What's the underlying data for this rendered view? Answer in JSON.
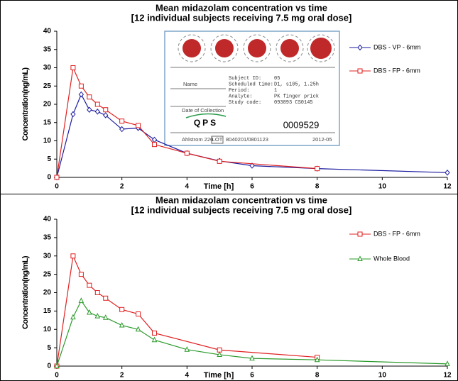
{
  "chart_data": [
    {
      "type": "line",
      "title": "Mean midazolam concentration vs time",
      "subtitle": "[12 individual subjects receiving 7.5 mg oral dose]",
      "xlabel": "Time [h]",
      "ylabel": "Concentration(ng/mL)",
      "xlim": [
        0,
        12
      ],
      "xticks": [
        0,
        2,
        4,
        6,
        8,
        10,
        12
      ],
      "ylim": [
        0,
        40
      ],
      "yticks": [
        0,
        5,
        10,
        15,
        20,
        25,
        30,
        35,
        40
      ],
      "legend": "upper right",
      "series": [
        {
          "name": "DBS - VP - 6mm",
          "color": "#1a1aa0",
          "marker": "diamond",
          "x": [
            0,
            0.5,
            0.75,
            1,
            1.25,
            1.5,
            2,
            2.5,
            3,
            4,
            5,
            6,
            8,
            12
          ],
          "values": [
            0,
            17.3,
            22.7,
            18.5,
            18,
            17,
            13.2,
            13.5,
            10.3,
            6.6,
            4.5,
            3.2,
            2.4,
            1.3
          ]
        },
        {
          "name": "DBS - FP - 6mm",
          "color": "#e02020",
          "marker": "square",
          "x": [
            0,
            0.5,
            0.75,
            1,
            1.25,
            1.5,
            2,
            2.5,
            3,
            4,
            5,
            8
          ],
          "values": [
            0,
            30,
            25,
            22,
            20,
            18.5,
            15.4,
            14.2,
            9,
            6.6,
            4.4,
            2.4
          ]
        }
      ],
      "inset": {
        "labels": [
          "Name",
          "Date of Collection"
        ],
        "fields": [
          [
            "Subject ID:",
            "05"
          ],
          [
            "Scheduled time:",
            "D1, s105, 1.25h"
          ],
          [
            "Period:",
            "1"
          ],
          [
            "Analyte:",
            "PK finger prick"
          ],
          [
            "Study code:",
            "093893 CS0145"
          ]
        ],
        "logo": "QPS",
        "number": "0009529",
        "footer": [
          "Ahlstrom 226",
          "LOT",
          "8040201/0801123",
          "2012-05"
        ]
      }
    },
    {
      "type": "line",
      "title": "Mean midazolam concentration vs time",
      "subtitle": "[12 individual subjects receiving 7.5 mg oral dose]",
      "xlabel": "Time [h]",
      "ylabel": "Concentration(ng/mL)",
      "xlim": [
        0,
        12
      ],
      "xticks": [
        0,
        2,
        4,
        6,
        8,
        10,
        12
      ],
      "ylim": [
        0,
        40
      ],
      "yticks": [
        0,
        5,
        10,
        15,
        20,
        25,
        30,
        35,
        40
      ],
      "legend": "upper right",
      "series": [
        {
          "name": "DBS - FP - 6mm",
          "color": "#e02020",
          "marker": "square",
          "x": [
            0,
            0.5,
            0.75,
            1,
            1.25,
            1.5,
            2,
            2.5,
            3,
            5,
            8
          ],
          "values": [
            0,
            30,
            25,
            22,
            20,
            18.5,
            15.4,
            14.2,
            9,
            4.4,
            2.4
          ]
        },
        {
          "name": "Whole Blood",
          "color": "#2a9a2a",
          "marker": "triangle",
          "x": [
            0,
            0.5,
            0.75,
            1,
            1.25,
            1.5,
            2,
            2.5,
            3,
            4,
            5,
            6,
            8,
            12
          ],
          "values": [
            0,
            13.3,
            17.8,
            14.6,
            13.6,
            13.2,
            11.1,
            10,
            7.1,
            4.5,
            3.1,
            2.1,
            1.7,
            0.6
          ]
        }
      ]
    }
  ]
}
